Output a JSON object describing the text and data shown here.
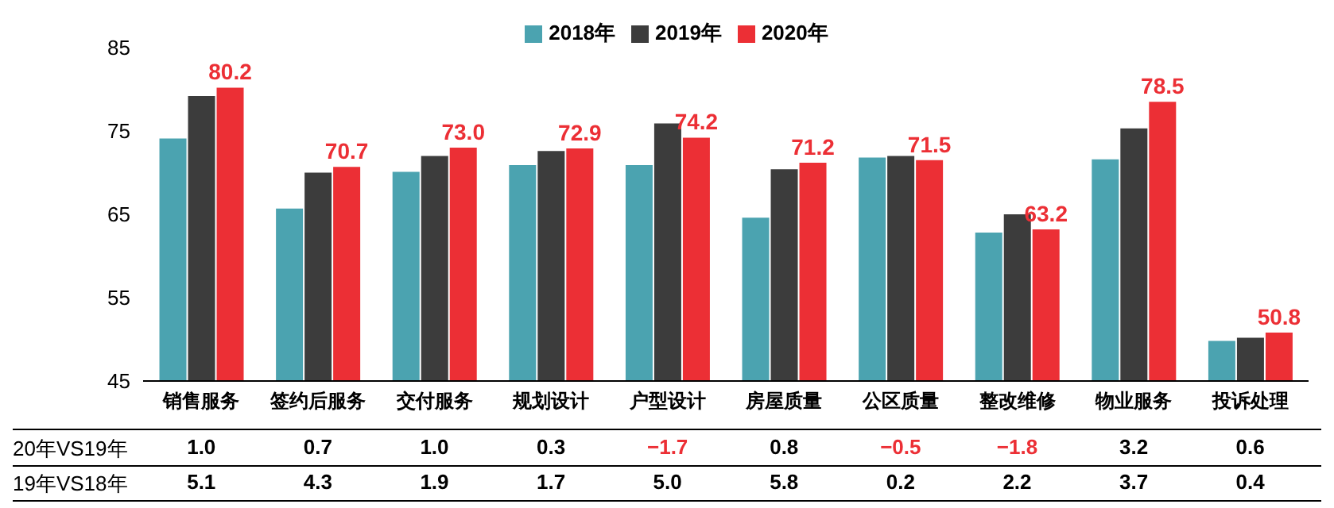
{
  "chart_data": {
    "type": "bar",
    "categories": [
      "销售服务",
      "签约后服务",
      "交付服务",
      "规划设计",
      "户型设计",
      "房屋质量",
      "公区质量",
      "整改维修",
      "物业服务",
      "投诉处理"
    ],
    "series": [
      {
        "name": "2018年",
        "color": "#4ba3b0",
        "values": [
          74.1,
          65.7,
          70.1,
          70.9,
          70.9,
          64.6,
          71.8,
          62.8,
          71.6,
          49.8
        ]
      },
      {
        "name": "2019年",
        "color": "#3c3c3c",
        "values": [
          79.2,
          70.0,
          72.0,
          72.6,
          75.9,
          70.4,
          72.0,
          65.0,
          75.3,
          50.2
        ]
      },
      {
        "name": "2020年",
        "color": "#ec2f35",
        "values": [
          80.2,
          70.7,
          73.0,
          72.9,
          74.2,
          71.2,
          71.5,
          63.2,
          78.5,
          50.8
        ],
        "value_labels": [
          "80.2",
          "70.7",
          "73.0",
          "72.9",
          "74.2",
          "71.2",
          "71.5",
          "63.2",
          "78.5",
          "50.8"
        ]
      }
    ],
    "ylim": [
      45,
      85
    ],
    "yticks": [
      45,
      55,
      65,
      75,
      85
    ],
    "grid": false,
    "legend": "top",
    "annotations": [
      "20年VS19年",
      "1.0",
      "0.7",
      "1.0",
      "0.3",
      "−1.7",
      "0.8",
      "−0.5",
      "−1.8",
      "3.2",
      "0.6",
      "19年VS18年",
      "5.1",
      "4.3",
      "1.9",
      "1.7",
      "5.0",
      "5.8",
      "0.2",
      "2.2",
      "3.7",
      "0.4"
    ]
  }
}
